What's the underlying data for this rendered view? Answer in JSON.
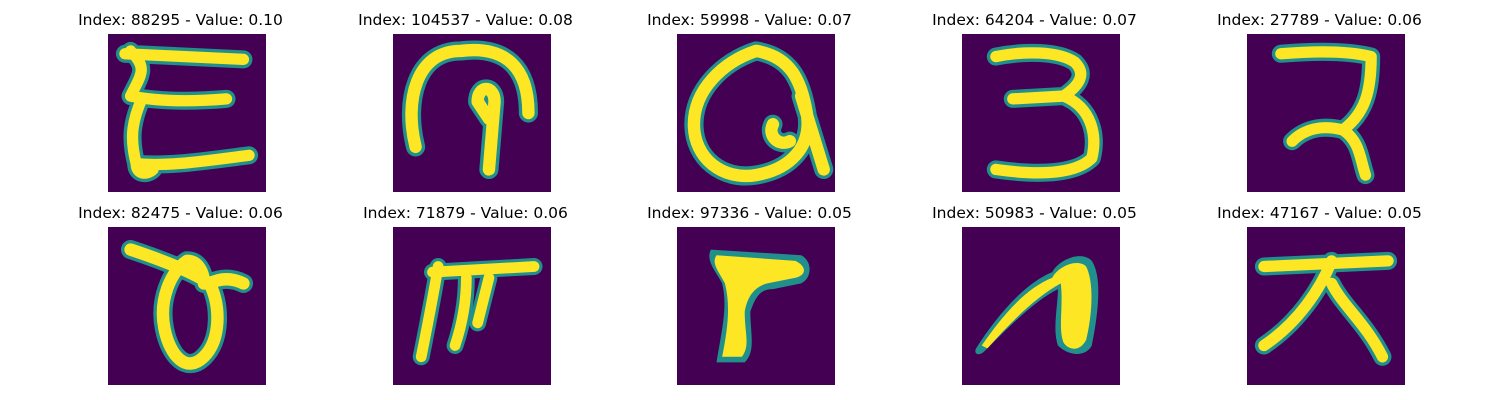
{
  "figure": {
    "colors": {
      "background": "#440154",
      "stroke_outer": "#21908d",
      "stroke_mid": "#5ec962",
      "stroke_core": "#fde725"
    },
    "panels": [
      {
        "title": "Index: 88295 - Value: 0.10",
        "glyph": "letter-E"
      },
      {
        "title": "Index: 104537 - Value: 0.08",
        "glyph": "loop-hook"
      },
      {
        "title": "Index: 59998 - Value: 0.07",
        "glyph": "letter-Q-like"
      },
      {
        "title": "Index: 64204 - Value: 0.07",
        "glyph": "digit-3"
      },
      {
        "title": "Index: 27789 - Value: 0.06",
        "glyph": "hook-2"
      },
      {
        "title": "Index: 82475 - Value: 0.06",
        "glyph": "loop-theta"
      },
      {
        "title": "Index: 71879 - Value: 0.06",
        "glyph": "stroke-F"
      },
      {
        "title": "Index: 97336 - Value: 0.05",
        "glyph": "block-P"
      },
      {
        "title": "Index: 50983 - Value: 0.05",
        "glyph": "curve-n"
      },
      {
        "title": "Index: 47167 - Value: 0.05",
        "glyph": "character-da"
      }
    ]
  }
}
